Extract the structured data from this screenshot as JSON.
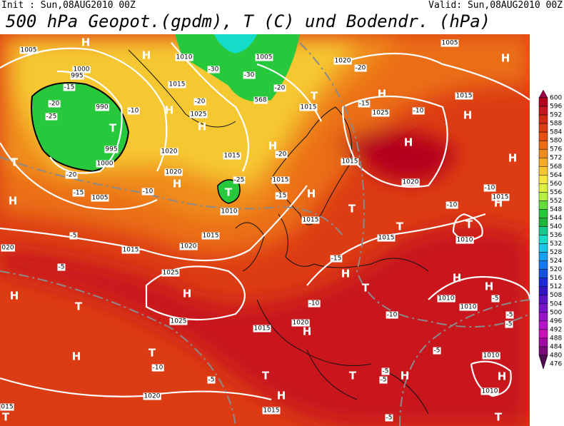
{
  "header": {
    "init": "Init : Sun,08AUG2010 00Z",
    "valid": "Valid: Sun,08AUG2010 00Z",
    "title": "500 hPa Geopot.(gpdm), T (C) und Bodendr. (hPa)"
  },
  "colorbar": {
    "values": [
      600,
      596,
      592,
      588,
      584,
      580,
      576,
      572,
      568,
      564,
      560,
      556,
      552,
      548,
      544,
      540,
      536,
      532,
      528,
      524,
      520,
      516,
      512,
      508,
      504,
      500,
      496,
      492,
      488,
      484,
      480,
      476
    ],
    "colors": [
      "#9c0046",
      "#b4001e",
      "#c8141e",
      "#d22814",
      "#dc3c14",
      "#e65014",
      "#eb6e14",
      "#f08c1e",
      "#f5aa28",
      "#f5c832",
      "#f5e63c",
      "#dcf03c",
      "#b4f03c",
      "#64dc3c",
      "#28c83c",
      "#1eb43c",
      "#14c88c",
      "#14dcc8",
      "#14c8e6",
      "#14a0f0",
      "#1478f0",
      "#1450e6",
      "#1e28dc",
      "#3214c8",
      "#5a14c8",
      "#7814c8",
      "#9614c8",
      "#b414c8",
      "#c814b4",
      "#a00aa0",
      "#780a78",
      "#500a50"
    ]
  },
  "map": {
    "centers": [
      "H",
      "H",
      "H",
      "H",
      "T",
      "T",
      "H",
      "H",
      "T",
      "H",
      "T",
      "H",
      "H",
      "H",
      "H",
      "H",
      "H",
      "T",
      "T",
      "H",
      "T",
      "H",
      "T",
      "H",
      "H",
      "H",
      "T",
      "H",
      "H",
      "T",
      "H",
      "T",
      "H",
      "T",
      "H",
      "H",
      "T",
      "T"
    ],
    "isobars": [
      "1005",
      "1000",
      "995",
      "1010",
      "1005",
      "1020",
      "1005",
      "1015",
      "1025",
      "990",
      "995",
      "1000",
      "1020",
      "1020",
      "1015",
      "1015",
      "1015",
      "1025",
      "1020",
      "1015",
      "1015",
      "1015",
      "1015",
      "1015",
      "1010",
      "1005",
      "1015",
      "1020",
      "1025",
      "1025",
      "1015",
      "1020",
      "1020",
      "1015",
      "1010",
      "1010",
      "1010",
      "1010",
      "1010",
      "020",
      "015",
      "1015"
    ],
    "temperatures": [
      "-15",
      "-20",
      "-25",
      "-10",
      "-20",
      "-15",
      "-10",
      "-5",
      "-5",
      "-30",
      "-30",
      "-20",
      "-25",
      "-20",
      "-15",
      "-20",
      "-20",
      "-15",
      "-10",
      "-10",
      "-10",
      "-15",
      "-10",
      "-10",
      "-5",
      "-5",
      "-5",
      "-5",
      "-5",
      "-5",
      "-5",
      "-10",
      "-5"
    ],
    "geopotential": [
      "568"
    ]
  }
}
